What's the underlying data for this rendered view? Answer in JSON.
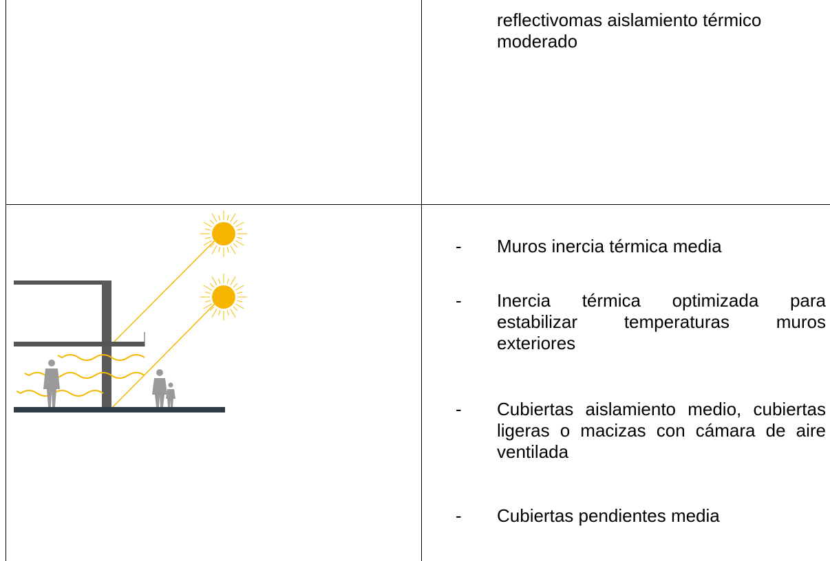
{
  "table": {
    "rows": [
      {
        "right": {
          "text": "reflectivomas aislamiento térmico moderado"
        }
      },
      {
        "right": {
          "bullets": [
            {
              "marker": "-",
              "text": "Muros inercia térmica media"
            },
            {
              "marker": "-",
              "text": "Inercia térmica optimizada para estabilizar temperaturas muros exteriores"
            },
            {
              "marker": "-",
              "text": "Cubiertas aislamiento medio, cubiertas ligeras o macizas con cámara de aire ventilada"
            },
            {
              "marker": "-",
              "text": "Cubiertas pendientes media"
            }
          ]
        }
      }
    ]
  }
}
